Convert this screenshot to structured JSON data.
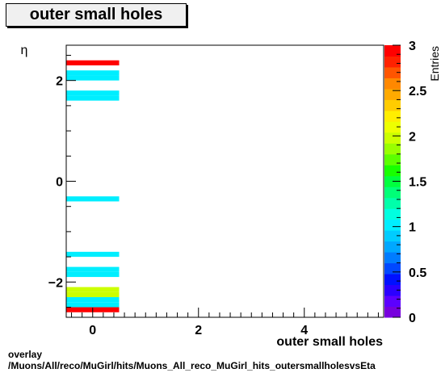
{
  "title": "outer small holes",
  "footer": {
    "line1": "overlay",
    "line2": "/Muons/All/reco/MuGirl/hits/Muons_All_reco_MuGirl_hits_outersmallholesvsEta"
  },
  "chart_data": {
    "type": "heatmap",
    "title": "outer small holes",
    "xlabel": "outer small holes",
    "ylabel": "η",
    "zlabel": "Entries",
    "xlim": [
      -0.5,
      5.5
    ],
    "ylim": [
      -2.7,
      2.7
    ],
    "zlim": [
      0,
      3
    ],
    "x_ticks": [
      "0",
      "2",
      "4"
    ],
    "y_ticks": [
      "−2",
      "0",
      "2"
    ],
    "z_ticks": [
      "0",
      "0.5",
      "1",
      "1.5",
      "2",
      "2.5",
      "3"
    ],
    "x_bin": [
      -0.5,
      0.5
    ],
    "cells": [
      {
        "eta": [
          2.3,
          2.4
        ],
        "entries": 3
      },
      {
        "eta": [
          2.1,
          2.2
        ],
        "entries": 1
      },
      {
        "eta": [
          2.0,
          2.1
        ],
        "entries": 1
      },
      {
        "eta": [
          1.6,
          1.7
        ],
        "entries": 1
      },
      {
        "eta": [
          1.7,
          1.8
        ],
        "entries": 1
      },
      {
        "eta": [
          -0.4,
          -0.3
        ],
        "entries": 1
      },
      {
        "eta": [
          -1.5,
          -1.4
        ],
        "entries": 1
      },
      {
        "eta": [
          -1.8,
          -1.7
        ],
        "entries": 1
      },
      {
        "eta": [
          -1.9,
          -1.8
        ],
        "entries": 1
      },
      {
        "eta": [
          -2.2,
          -2.1
        ],
        "entries": 2
      },
      {
        "eta": [
          -2.3,
          -2.2
        ],
        "entries": 2
      },
      {
        "eta": [
          -2.4,
          -2.3
        ],
        "entries": 1
      },
      {
        "eta": [
          -2.5,
          -2.4
        ],
        "entries": 1
      },
      {
        "eta": [
          -2.6,
          -2.5
        ],
        "entries": 3
      }
    ],
    "palette": [
      "#7700dd",
      "#5c00ff",
      "#2b00ff",
      "#0010ff",
      "#0048ff",
      "#007cff",
      "#00a8ff",
      "#00ccff",
      "#00eeff",
      "#00ffe0",
      "#00ffaa",
      "#00ff77",
      "#00ff3e",
      "#18ff00",
      "#5cff00",
      "#99ff00",
      "#ccff00",
      "#eeff00",
      "#ffee00",
      "#ffcc00",
      "#ffaa00",
      "#ff8800",
      "#ff5500",
      "#ff2200",
      "#ff0000"
    ]
  }
}
